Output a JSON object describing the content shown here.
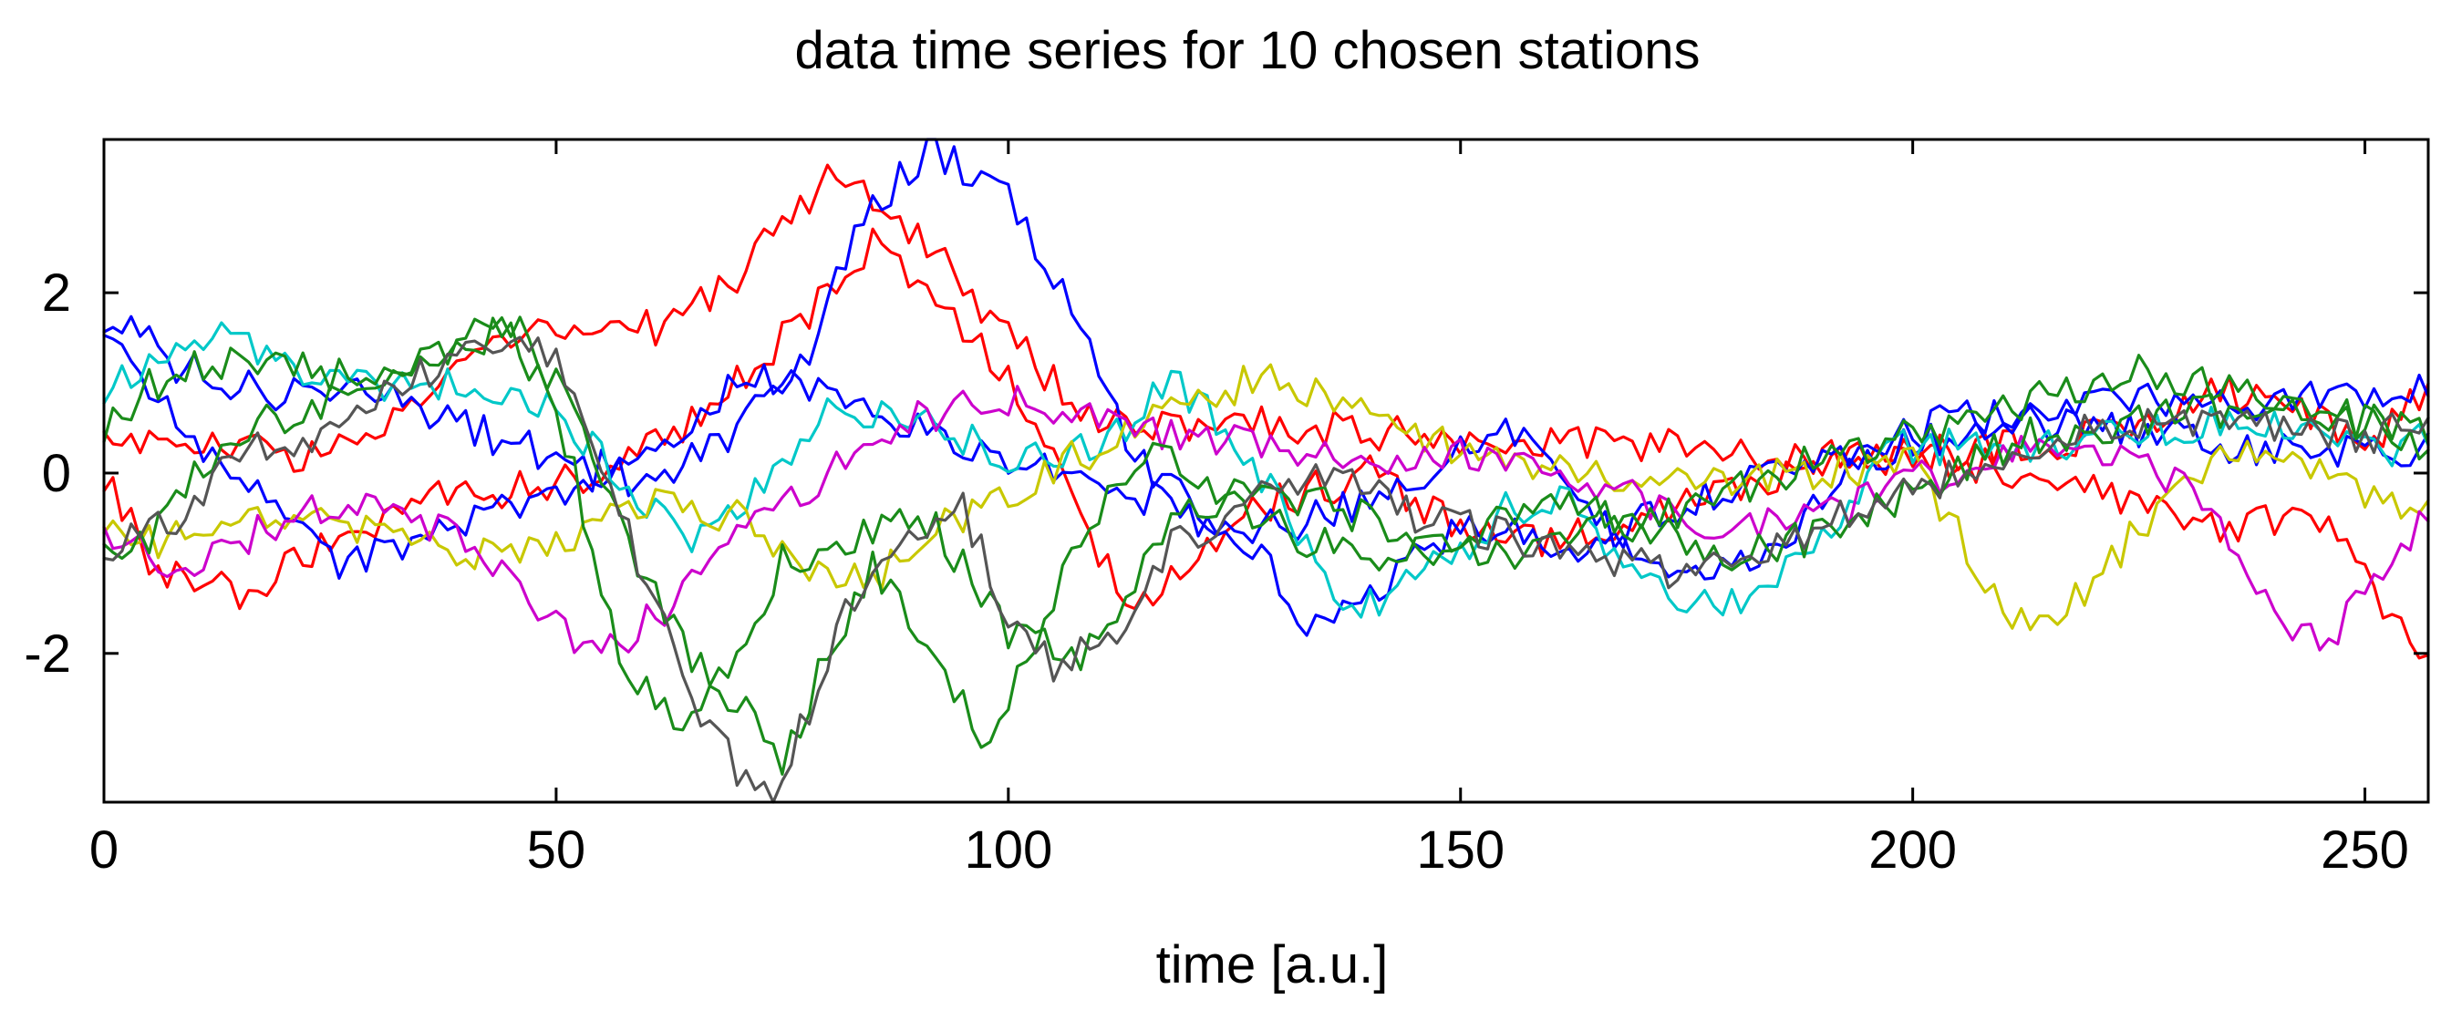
{
  "chart_data": {
    "type": "line",
    "title": "data time series for 10 chosen stations",
    "xlabel": "time [a.u.]",
    "ylabel": "",
    "xlim": [
      0,
      257
    ],
    "ylim": [
      -3.65,
      3.7
    ],
    "xticks": [
      0,
      50,
      100,
      150,
      200,
      250
    ],
    "yticks": [
      -2,
      0,
      2
    ],
    "xtick_labels": [
      "0",
      "50",
      "100",
      "150",
      "200",
      "250"
    ],
    "ytick_labels": [
      "-2",
      "0",
      "2"
    ],
    "grid": false,
    "legend": "none",
    "series": [
      {
        "name": "red-1",
        "color": "#ff0000",
        "keypoints": [
          [
            0,
            0.4
          ],
          [
            10,
            0.3
          ],
          [
            25,
            0.2
          ],
          [
            35,
            0.8
          ],
          [
            45,
            1.5
          ],
          [
            55,
            1.6
          ],
          [
            62,
            1.6
          ],
          [
            70,
            2.2
          ],
          [
            80,
            3.3
          ],
          [
            85,
            3.0
          ],
          [
            92,
            2.5
          ],
          [
            100,
            1.5
          ],
          [
            108,
            0.7
          ],
          [
            112,
            0.5
          ],
          [
            125,
            0.6
          ],
          [
            135,
            0.5
          ],
          [
            150,
            0.4
          ],
          [
            170,
            0.3
          ],
          [
            185,
            0.2
          ],
          [
            200,
            0.2
          ],
          [
            215,
            0.3
          ],
          [
            225,
            0.6
          ],
          [
            235,
            0.9
          ],
          [
            243,
            0.7
          ],
          [
            250,
            0.2
          ],
          [
            257,
            1.0
          ]
        ]
      },
      {
        "name": "red-2",
        "color": "#ff0000",
        "keypoints": [
          [
            0,
            0.0
          ],
          [
            5,
            -1.0
          ],
          [
            15,
            -1.3
          ],
          [
            25,
            -0.8
          ],
          [
            35,
            -0.3
          ],
          [
            45,
            -0.2
          ],
          [
            55,
            0.0
          ],
          [
            65,
            0.6
          ],
          [
            75,
            1.5
          ],
          [
            80,
            2.0
          ],
          [
            85,
            2.5
          ],
          [
            92,
            2.0
          ],
          [
            100,
            1.0
          ],
          [
            108,
            -0.5
          ],
          [
            113,
            -1.5
          ],
          [
            120,
            -1.0
          ],
          [
            127,
            -0.4
          ],
          [
            140,
            0.0
          ],
          [
            150,
            -0.6
          ],
          [
            160,
            -0.8
          ],
          [
            175,
            -0.3
          ],
          [
            190,
            0.1
          ],
          [
            205,
            0.1
          ],
          [
            215,
            0.0
          ],
          [
            225,
            -0.3
          ],
          [
            235,
            -0.6
          ],
          [
            245,
            -0.5
          ],
          [
            252,
            -1.5
          ],
          [
            257,
            -2.2
          ]
        ]
      },
      {
        "name": "blue-1",
        "color": "#0000ff",
        "keypoints": [
          [
            0,
            1.6
          ],
          [
            3,
            1.8
          ],
          [
            8,
            1.2
          ],
          [
            18,
            0.9
          ],
          [
            30,
            1.0
          ],
          [
            40,
            0.5
          ],
          [
            50,
            0.2
          ],
          [
            55,
            0.0
          ],
          [
            62,
            -0.1
          ],
          [
            70,
            0.5
          ],
          [
            78,
            1.4
          ],
          [
            85,
            3.0
          ],
          [
            92,
            3.6
          ],
          [
            100,
            3.0
          ],
          [
            108,
            1.8
          ],
          [
            113,
            0.3
          ],
          [
            120,
            -0.3
          ],
          [
            128,
            -1.0
          ],
          [
            133,
            -1.6
          ],
          [
            140,
            -1.3
          ],
          [
            150,
            -0.6
          ],
          [
            165,
            -0.8
          ],
          [
            175,
            -0.3
          ],
          [
            185,
            0.0
          ],
          [
            195,
            0.3
          ],
          [
            205,
            0.6
          ],
          [
            220,
            0.8
          ],
          [
            235,
            0.8
          ],
          [
            250,
            0.8
          ],
          [
            257,
            0.9
          ]
        ]
      },
      {
        "name": "blue-2",
        "color": "#0000ff",
        "keypoints": [
          [
            0,
            1.4
          ],
          [
            5,
            1.0
          ],
          [
            10,
            0.3
          ],
          [
            20,
            -0.5
          ],
          [
            25,
            -1.0
          ],
          [
            30,
            -0.9
          ],
          [
            40,
            -0.5
          ],
          [
            50,
            -0.2
          ],
          [
            60,
            0.3
          ],
          [
            65,
            0.6
          ],
          [
            70,
            1.0
          ],
          [
            76,
            1.1
          ],
          [
            82,
            0.8
          ],
          [
            90,
            0.5
          ],
          [
            100,
            0.2
          ],
          [
            110,
            0.0
          ],
          [
            120,
            -0.5
          ],
          [
            130,
            -0.6
          ],
          [
            140,
            -0.3
          ],
          [
            150,
            0.2
          ],
          [
            155,
            0.5
          ],
          [
            160,
            0.3
          ],
          [
            168,
            -0.8
          ],
          [
            175,
            -1.2
          ],
          [
            185,
            -0.8
          ],
          [
            195,
            0.2
          ],
          [
            210,
            0.6
          ],
          [
            225,
            0.5
          ],
          [
            235,
            0.3
          ],
          [
            245,
            0.2
          ],
          [
            257,
            0.3
          ]
        ]
      },
      {
        "name": "cyan",
        "color": "#00c8c8",
        "keypoints": [
          [
            0,
            0.9
          ],
          [
            5,
            1.3
          ],
          [
            12,
            1.5
          ],
          [
            20,
            1.2
          ],
          [
            30,
            0.9
          ],
          [
            40,
            1.0
          ],
          [
            48,
            0.8
          ],
          [
            55,
            0.2
          ],
          [
            60,
            -0.4
          ],
          [
            65,
            -0.8
          ],
          [
            72,
            -0.2
          ],
          [
            80,
            0.8
          ],
          [
            90,
            0.6
          ],
          [
            100,
            0.2
          ],
          [
            110,
            0.3
          ],
          [
            118,
            1.0
          ],
          [
            125,
            0.4
          ],
          [
            132,
            -0.6
          ],
          [
            138,
            -1.6
          ],
          [
            148,
            -1.0
          ],
          [
            155,
            -0.4
          ],
          [
            163,
            -0.3
          ],
          [
            170,
            -1.3
          ],
          [
            178,
            -1.5
          ],
          [
            188,
            -1.0
          ],
          [
            198,
            0.3
          ],
          [
            215,
            0.3
          ],
          [
            228,
            0.5
          ],
          [
            240,
            0.6
          ],
          [
            250,
            0.2
          ],
          [
            257,
            0.4
          ]
        ]
      },
      {
        "name": "yellow",
        "color": "#c8c800",
        "keypoints": [
          [
            0,
            -0.7
          ],
          [
            6,
            -0.8
          ],
          [
            15,
            -0.4
          ],
          [
            25,
            -0.5
          ],
          [
            35,
            -0.8
          ],
          [
            45,
            -0.9
          ],
          [
            55,
            -0.6
          ],
          [
            62,
            -0.2
          ],
          [
            70,
            -0.5
          ],
          [
            78,
            -1.0
          ],
          [
            85,
            -1.2
          ],
          [
            92,
            -0.6
          ],
          [
            100,
            -0.2
          ],
          [
            110,
            0.3
          ],
          [
            120,
            0.8
          ],
          [
            130,
            1.1
          ],
          [
            138,
            0.7
          ],
          [
            145,
            0.4
          ],
          [
            155,
            0.2
          ],
          [
            165,
            0.0
          ],
          [
            175,
            -0.1
          ],
          [
            190,
            0.0
          ],
          [
            200,
            0.1
          ],
          [
            205,
            -0.6
          ],
          [
            210,
            -1.6
          ],
          [
            215,
            -1.7
          ],
          [
            222,
            -1.0
          ],
          [
            230,
            0.0
          ],
          [
            240,
            0.3
          ],
          [
            250,
            -0.3
          ],
          [
            257,
            -0.4
          ]
        ]
      },
      {
        "name": "magenta",
        "color": "#cc00cc",
        "keypoints": [
          [
            0,
            -0.8
          ],
          [
            10,
            -1.0
          ],
          [
            20,
            -0.5
          ],
          [
            30,
            -0.3
          ],
          [
            40,
            -0.8
          ],
          [
            48,
            -1.5
          ],
          [
            55,
            -2.0
          ],
          [
            62,
            -1.5
          ],
          [
            68,
            -0.8
          ],
          [
            75,
            -0.4
          ],
          [
            82,
            0.2
          ],
          [
            90,
            0.6
          ],
          [
            100,
            0.8
          ],
          [
            110,
            0.6
          ],
          [
            120,
            0.4
          ],
          [
            130,
            0.3
          ],
          [
            140,
            0.2
          ],
          [
            150,
            0.2
          ],
          [
            160,
            0.0
          ],
          [
            170,
            -0.3
          ],
          [
            180,
            -0.6
          ],
          [
            190,
            -0.5
          ],
          [
            200,
            -0.1
          ],
          [
            210,
            0.2
          ],
          [
            222,
            0.3
          ],
          [
            232,
            -0.2
          ],
          [
            240,
            -1.6
          ],
          [
            246,
            -1.8
          ],
          [
            252,
            -1.2
          ],
          [
            257,
            -0.4
          ]
        ]
      },
      {
        "name": "green-1",
        "color": "#1a8c1a",
        "keypoints": [
          [
            0,
            0.4
          ],
          [
            5,
            1.0
          ],
          [
            12,
            1.2
          ],
          [
            20,
            1.2
          ],
          [
            30,
            1.0
          ],
          [
            38,
            1.3
          ],
          [
            44,
            1.6
          ],
          [
            48,
            1.1
          ],
          [
            52,
            0.0
          ],
          [
            55,
            -1.3
          ],
          [
            58,
            -2.2
          ],
          [
            65,
            -2.8
          ],
          [
            70,
            -2.0
          ],
          [
            75,
            -1.0
          ],
          [
            80,
            -0.8
          ],
          [
            88,
            -0.5
          ],
          [
            92,
            -0.6
          ],
          [
            100,
            -1.8
          ],
          [
            108,
            -2.0
          ],
          [
            112,
            -1.5
          ],
          [
            118,
            -0.6
          ],
          [
            125,
            -0.2
          ],
          [
            135,
            -0.3
          ],
          [
            145,
            -0.8
          ],
          [
            155,
            -0.9
          ],
          [
            165,
            -0.5
          ],
          [
            175,
            -0.4
          ],
          [
            185,
            0.0
          ],
          [
            195,
            0.3
          ],
          [
            210,
            0.7
          ],
          [
            225,
            1.2
          ],
          [
            235,
            0.9
          ],
          [
            245,
            0.8
          ],
          [
            257,
            0.2
          ]
        ]
      },
      {
        "name": "green-2",
        "color": "#1a8c1a",
        "keypoints": [
          [
            0,
            -0.9
          ],
          [
            5,
            -0.8
          ],
          [
            10,
            0.0
          ],
          [
            15,
            0.5
          ],
          [
            22,
            0.7
          ],
          [
            30,
            1.0
          ],
          [
            38,
            1.4
          ],
          [
            45,
            1.7
          ],
          [
            50,
            1.0
          ],
          [
            55,
            0.0
          ],
          [
            60,
            -1.2
          ],
          [
            65,
            -2.0
          ],
          [
            72,
            -2.8
          ],
          [
            75,
            -3.2
          ],
          [
            80,
            -2.0
          ],
          [
            85,
            -1.0
          ],
          [
            90,
            -1.8
          ],
          [
            95,
            -2.6
          ],
          [
            98,
            -3.0
          ],
          [
            102,
            -2.0
          ],
          [
            108,
            -0.8
          ],
          [
            115,
            0.3
          ],
          [
            122,
            -0.1
          ],
          [
            130,
            -0.6
          ],
          [
            140,
            -1.0
          ],
          [
            150,
            -0.7
          ],
          [
            160,
            -0.3
          ],
          [
            170,
            -0.6
          ],
          [
            180,
            -0.9
          ],
          [
            190,
            -0.7
          ],
          [
            200,
            -0.2
          ],
          [
            212,
            0.4
          ],
          [
            222,
            0.5
          ],
          [
            232,
            0.7
          ],
          [
            245,
            0.6
          ],
          [
            257,
            0.5
          ]
        ]
      },
      {
        "name": "gray",
        "color": "#555555",
        "keypoints": [
          [
            0,
            -0.8
          ],
          [
            8,
            -0.5
          ],
          [
            15,
            0.2
          ],
          [
            25,
            0.5
          ],
          [
            33,
            1.0
          ],
          [
            40,
            1.4
          ],
          [
            45,
            1.6
          ],
          [
            50,
            1.2
          ],
          [
            55,
            0.2
          ],
          [
            60,
            -1.2
          ],
          [
            66,
            -2.6
          ],
          [
            70,
            -3.3
          ],
          [
            74,
            -3.6
          ],
          [
            78,
            -2.6
          ],
          [
            82,
            -1.6
          ],
          [
            88,
            -0.6
          ],
          [
            95,
            -0.4
          ],
          [
            100,
            -1.6
          ],
          [
            105,
            -2.2
          ],
          [
            112,
            -1.7
          ],
          [
            118,
            -0.8
          ],
          [
            125,
            -0.4
          ],
          [
            130,
            -0.1
          ],
          [
            137,
            0.1
          ],
          [
            145,
            -0.5
          ],
          [
            155,
            -0.7
          ],
          [
            165,
            -0.9
          ],
          [
            172,
            -1.1
          ],
          [
            180,
            -1.0
          ],
          [
            190,
            -0.6
          ],
          [
            200,
            -0.2
          ],
          [
            210,
            0.2
          ],
          [
            220,
            0.5
          ],
          [
            230,
            0.6
          ],
          [
            240,
            0.5
          ],
          [
            250,
            0.4
          ],
          [
            257,
            0.6
          ]
        ]
      }
    ]
  }
}
